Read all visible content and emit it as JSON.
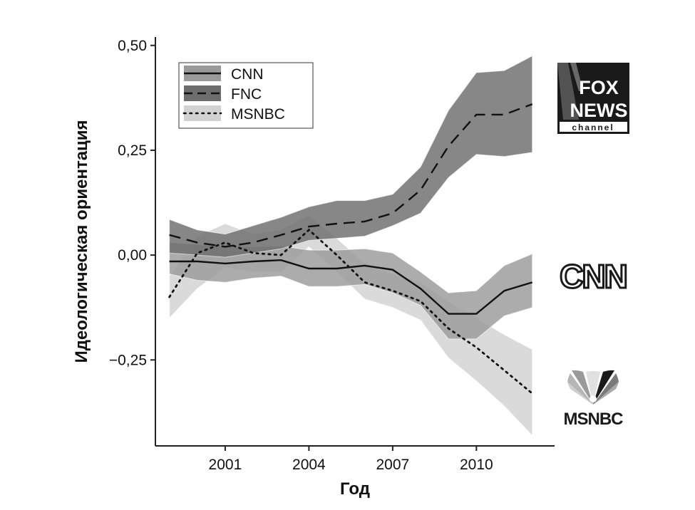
{
  "chart_data": {
    "type": "line",
    "xlabel": "Год",
    "ylabel": "Идеологическая ориентация",
    "xlim": [
      1998.5,
      2012.8
    ],
    "ylim": [
      -0.455,
      0.52
    ],
    "x_ticks": [
      2001,
      2004,
      2007,
      2010
    ],
    "x_tick_labels": [
      "2001",
      "2004",
      "2007",
      "2010"
    ],
    "y_ticks": [
      0.5,
      0.25,
      0,
      -0.25
    ],
    "y_tick_labels": [
      "0,50",
      "0,25",
      "0,00",
      "−0,25"
    ],
    "grid": false,
    "legend_position": "top-left",
    "x": [
      1999,
      2000,
      2001,
      2002,
      2003,
      2004,
      2005,
      2006,
      2007,
      2008,
      2009,
      2010,
      2011,
      2012
    ],
    "series": [
      {
        "name": "CNN",
        "line_style": "solid",
        "band_color": "#9a9a9a",
        "values": [
          -0.015,
          -0.015,
          -0.02,
          -0.015,
          -0.012,
          -0.032,
          -0.032,
          -0.025,
          -0.035,
          -0.08,
          -0.14,
          -0.14,
          -0.085,
          -0.065
        ],
        "lower": [
          -0.045,
          -0.06,
          -0.065,
          -0.055,
          -0.05,
          -0.075,
          -0.075,
          -0.07,
          -0.09,
          -0.12,
          -0.2,
          -0.2,
          -0.145,
          -0.125
        ],
        "upper": [
          0.03,
          0.025,
          0.02,
          0.02,
          0.022,
          0.012,
          0.012,
          0.015,
          0.005,
          -0.04,
          -0.09,
          -0.085,
          -0.025,
          0.003
        ]
      },
      {
        "name": "FNC",
        "line_style": "dashed",
        "band_color": "#6d6d6d",
        "values": [
          0.048,
          0.03,
          0.02,
          0.03,
          0.048,
          0.068,
          0.075,
          0.08,
          0.1,
          0.155,
          0.26,
          0.335,
          0.335,
          0.36
        ],
        "lower": [
          0.005,
          0.0,
          -0.005,
          0.005,
          0.015,
          0.035,
          0.04,
          0.045,
          0.07,
          0.1,
          0.185,
          0.24,
          0.235,
          0.245
        ],
        "upper": [
          0.085,
          0.06,
          0.05,
          0.07,
          0.09,
          0.115,
          0.13,
          0.13,
          0.145,
          0.21,
          0.345,
          0.435,
          0.44,
          0.475
        ]
      },
      {
        "name": "MSNBC",
        "line_style": "dotted",
        "band_color": "#d2d2d2",
        "values": [
          -0.1,
          0.005,
          0.03,
          0.005,
          0.0,
          0.06,
          0.0,
          -0.065,
          -0.085,
          -0.11,
          -0.175,
          -0.22,
          -0.275,
          -0.33
        ],
        "lower": [
          -0.15,
          -0.08,
          -0.03,
          -0.04,
          -0.04,
          0.02,
          -0.04,
          -0.105,
          -0.125,
          -0.155,
          -0.245,
          -0.3,
          -0.36,
          -0.43
        ],
        "upper": [
          -0.05,
          0.045,
          0.075,
          0.05,
          0.06,
          0.095,
          0.04,
          -0.02,
          -0.045,
          -0.065,
          -0.11,
          -0.15,
          -0.19,
          -0.225
        ]
      }
    ]
  },
  "logos": [
    {
      "name": "fox-news-channel",
      "lines": [
        "FOX",
        "NEWS",
        "channel"
      ]
    },
    {
      "name": "cnn",
      "text": "CNN"
    },
    {
      "name": "msnbc",
      "text": "MSNBC"
    }
  ],
  "colors": {
    "background": "#ffffff",
    "axis": "#222222",
    "line": "#111111",
    "logo_dark": "#1a1a1a"
  }
}
